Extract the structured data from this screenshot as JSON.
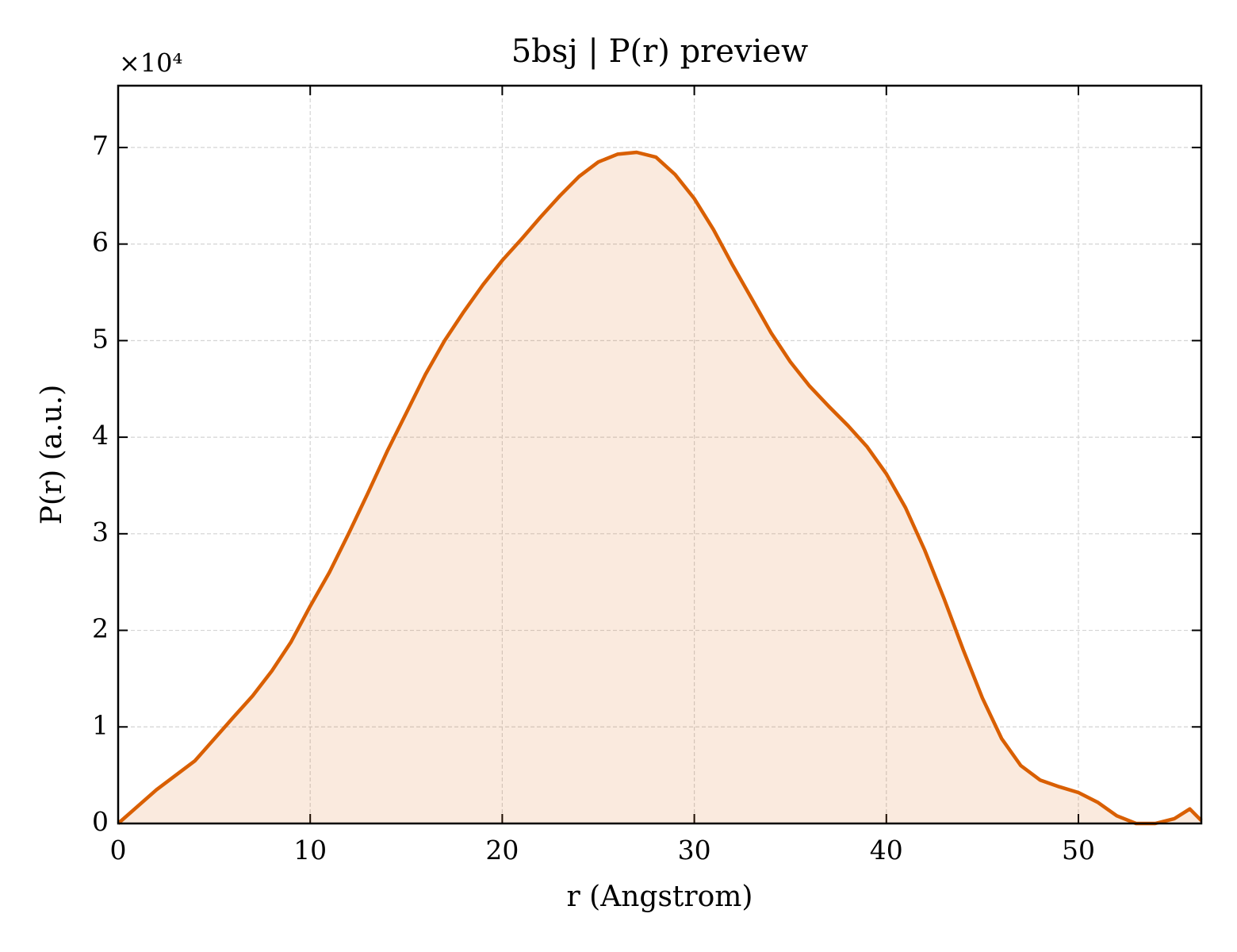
{
  "chart_data": {
    "type": "line",
    "title": "5bsj | P(r) preview",
    "xlabel": "r (Angstrom)",
    "ylabel": "P(r) (a.u.)",
    "y_offset_label": "×10⁴",
    "x": [
      0,
      2,
      4,
      6,
      7,
      8,
      9,
      10,
      11,
      12,
      13,
      14,
      15,
      16,
      17,
      18,
      19,
      20,
      21,
      22,
      23,
      24,
      25,
      26,
      27,
      28,
      29,
      30,
      31,
      32,
      33,
      34,
      35,
      36,
      37,
      38,
      39,
      40,
      41,
      42,
      43,
      44,
      45,
      46,
      47,
      48,
      49,
      50,
      51,
      52,
      53,
      54,
      55,
      55.8,
      56.4
    ],
    "series": [
      {
        "name": "P(r)",
        "color": "#d95f02",
        "fill": true,
        "values": [
          0,
          3500,
          6500,
          11000,
          13200,
          15800,
          18800,
          22500,
          26000,
          30000,
          34200,
          38500,
          42500,
          46500,
          50000,
          53000,
          55800,
          58300,
          60500,
          62800,
          65000,
          67000,
          68500,
          69300,
          69500,
          69000,
          67200,
          64700,
          61500,
          57800,
          54300,
          50800,
          47800,
          45300,
          43200,
          41200,
          39000,
          36200,
          32700,
          28300,
          23300,
          18000,
          13000,
          8800,
          6000,
          4500,
          3800,
          3200,
          2200,
          800,
          0,
          0,
          500,
          1500,
          300
        ]
      }
    ],
    "xlim": [
      0,
      56.4
    ],
    "ylim": [
      0,
      76400
    ],
    "xticks": [
      0,
      10,
      20,
      30,
      40,
      50
    ],
    "yticks": [
      {
        "value": 0,
        "label": "0"
      },
      {
        "value": 10000,
        "label": "1"
      },
      {
        "value": 20000,
        "label": "2"
      },
      {
        "value": 30000,
        "label": "3"
      },
      {
        "value": 40000,
        "label": "4"
      },
      {
        "value": 50000,
        "label": "5"
      },
      {
        "value": 60000,
        "label": "6"
      },
      {
        "value": 70000,
        "label": "7"
      }
    ],
    "grid": true
  }
}
